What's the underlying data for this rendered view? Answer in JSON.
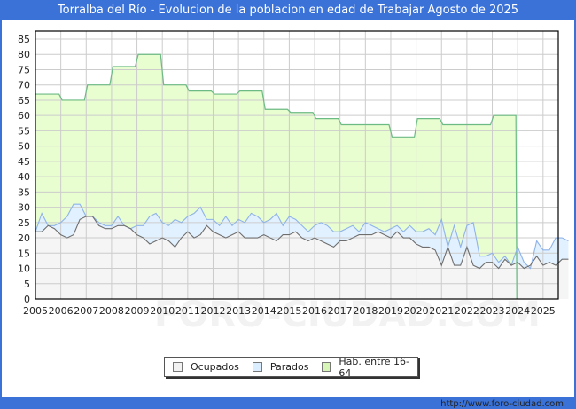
{
  "title": "Torralba del Río - Evolucion de la poblacion en edad de Trabajar Agosto de 2025",
  "footer_url": "http://www.foro-ciudad.com",
  "watermark": "FORO-CIUDAD.COM",
  "legend": [
    {
      "label": "Ocupados",
      "color": "#f2f2f2"
    },
    {
      "label": "Parados",
      "color": "#dbeeff"
    },
    {
      "label": "Hab. entre 16-64",
      "color": "#d8f5b8"
    }
  ],
  "colors": {
    "hab_fill": "#e8fdd0",
    "hab_line": "#6cba84",
    "parados_fill": "#e2f1ff",
    "parados_line": "#8fb3e8",
    "ocupados_fill": "#f5f5f5",
    "ocupados_line": "#6e6e6e",
    "grid": "#cccccc"
  },
  "chart_data": {
    "type": "area",
    "title": "Torralba del Río - Evolucion de la poblacion en edad de Trabajar Agosto de 2025",
    "xlabel": "",
    "ylabel": "",
    "ylim": [
      0,
      85
    ],
    "xlim": [
      2005,
      2025.6
    ],
    "yticks": [
      0,
      5,
      10,
      15,
      20,
      25,
      30,
      35,
      40,
      45,
      50,
      55,
      60,
      65,
      70,
      75,
      80,
      85
    ],
    "xticks": [
      2005,
      2006,
      2007,
      2008,
      2009,
      2010,
      2011,
      2012,
      2013,
      2014,
      2015,
      2016,
      2017,
      2018,
      2019,
      2020,
      2021,
      2022,
      2023,
      2024,
      2025
    ],
    "grid": true,
    "legend_position": "bottom",
    "hab_16_64": {
      "x": [
        2005,
        2006,
        2007,
        2008,
        2009,
        2010,
        2011,
        2012,
        2013,
        2014,
        2015,
        2016,
        2017,
        2018,
        2019,
        2020,
        2021,
        2022,
        2023
      ],
      "values": [
        67,
        65,
        70,
        76,
        80,
        70,
        68,
        67,
        68,
        62,
        61,
        59,
        57,
        57,
        53,
        59,
        57,
        57,
        60
      ]
    },
    "series_x_start": 2005,
    "series_x_step": 0.25,
    "series": [
      {
        "name": "Ocupados",
        "values": [
          22,
          22,
          24,
          23,
          21,
          20,
          21,
          26,
          27,
          27,
          24,
          23,
          23,
          24,
          24,
          23,
          21,
          20,
          18,
          19,
          20,
          19,
          17,
          20,
          22,
          20,
          21,
          24,
          22,
          21,
          20,
          21,
          22,
          20,
          20,
          20,
          21,
          20,
          19,
          21,
          21,
          22,
          20,
          19,
          20,
          19,
          18,
          17,
          19,
          19,
          20,
          21,
          21,
          21,
          22,
          21,
          20,
          22,
          20,
          20,
          18,
          17,
          17,
          16,
          11,
          17,
          11,
          11,
          17,
          11,
          10,
          12,
          12,
          10,
          13,
          11,
          12,
          10,
          11,
          14,
          11,
          12,
          11,
          13,
          13
        ]
      },
      {
        "name": "Parados",
        "values": [
          0,
          6,
          0,
          1,
          4,
          7,
          10,
          5,
          0,
          0,
          1,
          1,
          1,
          3,
          0,
          0,
          3,
          4,
          9,
          9,
          5,
          5,
          9,
          5,
          5,
          8,
          9,
          2,
          4,
          3,
          7,
          3,
          4,
          5,
          8,
          7,
          4,
          6,
          9,
          3,
          6,
          4,
          4,
          3,
          4,
          6,
          6,
          5,
          3,
          4,
          4,
          1,
          4,
          3,
          1,
          1,
          3,
          2,
          2,
          4,
          4,
          5,
          6,
          5,
          15,
          0,
          13,
          6,
          7,
          14,
          4,
          2,
          3,
          2,
          1,
          0,
          5,
          2,
          -1,
          5,
          5,
          4,
          9,
          7,
          6
        ]
      }
    ]
  }
}
